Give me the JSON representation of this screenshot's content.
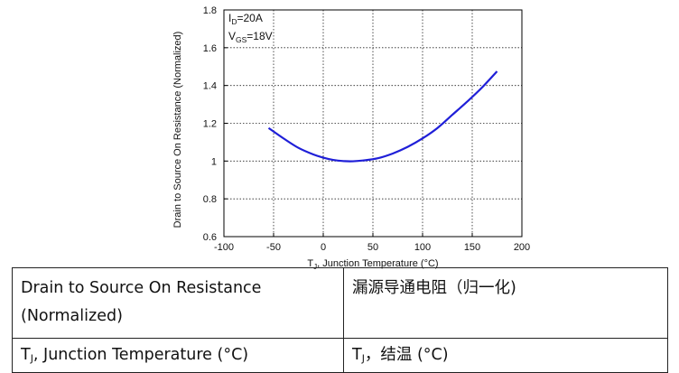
{
  "chart_data": {
    "type": "line",
    "title": "",
    "xlabel": "T",
    "xlabel_sub": "J",
    "xlabel_rest": ", Junction Temperature (°C)",
    "ylabel": "Drain to Source On Resistance (Normalized)",
    "xlim": [
      -100,
      200
    ],
    "ylim": [
      0.6,
      1.8
    ],
    "xticks": [
      -100,
      -50,
      0,
      50,
      100,
      150,
      200
    ],
    "yticks": [
      0.6,
      0.8,
      1,
      1.2,
      1.4,
      1.6,
      1.8
    ],
    "ytick_labels": [
      "0.6",
      "0.8",
      "1",
      "1.2",
      "1.4",
      "1.6",
      "1.8"
    ],
    "grid": true,
    "series_color": "#1f1fd8",
    "annotation": {
      "line1_main": "I",
      "line1_sub": "D",
      "line1_rest": "=20A",
      "line2_main": "V",
      "line2_sub": "GS",
      "line2_rest": "=18V"
    },
    "series": [
      {
        "name": "",
        "x": [
          -55,
          -40,
          -25,
          -10,
          0,
          10,
          20,
          30,
          40,
          55,
          70,
          85,
          100,
          115,
          130,
          145,
          160,
          175
        ],
        "y": [
          1.175,
          1.12,
          1.07,
          1.035,
          1.018,
          1.006,
          1.0,
          0.999,
          1.003,
          1.015,
          1.04,
          1.075,
          1.12,
          1.175,
          1.245,
          1.315,
          1.39,
          1.475
        ]
      }
    ]
  },
  "table": {
    "rows": [
      [
        "Drain to Source On Resistance (Normalized)",
        "漏源导通电阻（归一化)"
      ],
      [
        "T|J|, Junction Temperature (°C)",
        "T|J|，结温 (°C)"
      ]
    ]
  }
}
